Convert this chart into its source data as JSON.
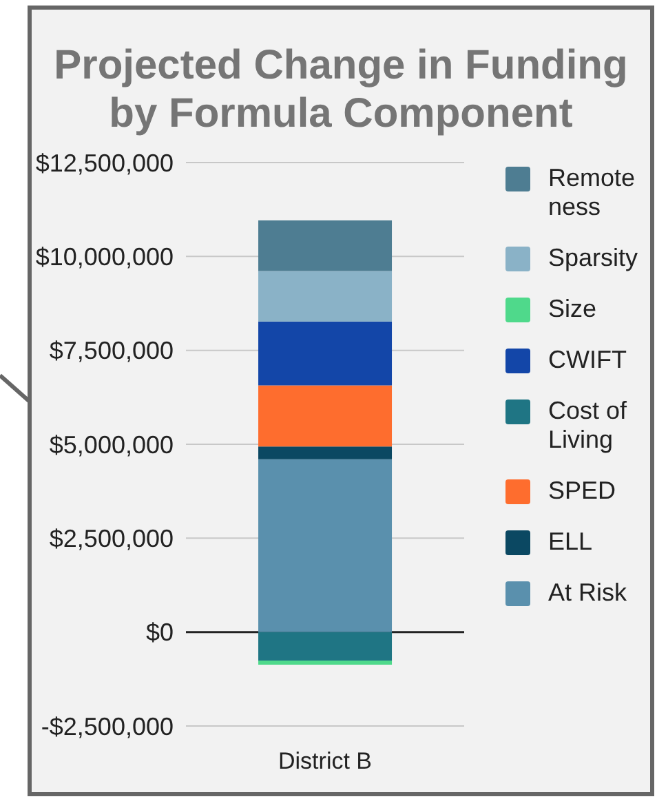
{
  "chart_data": {
    "type": "bar",
    "title": "Projected Change in Funding by Formula Component",
    "categories": [
      "District B"
    ],
    "stacked": true,
    "series": [
      {
        "name": "At Risk",
        "color": "#5a90ad",
        "values": [
          4600000
        ]
      },
      {
        "name": "ELL",
        "color": "#0b4862",
        "values": [
          340000
        ]
      },
      {
        "name": "SPED",
        "color": "#fe6d2e",
        "values": [
          1630000
        ]
      },
      {
        "name": "Cost of Living",
        "color": "#1f7584",
        "values": [
          -760000
        ]
      },
      {
        "name": "CWIFT",
        "color": "#1346a8",
        "values": [
          1700000
        ]
      },
      {
        "name": "Size",
        "color": "#4fd98b",
        "values": [
          -110000
        ]
      },
      {
        "name": "Sparsity",
        "color": "#8ab2c7",
        "values": [
          1340000
        ]
      },
      {
        "name": "Remoteness",
        "color": "#4e7d92",
        "values": [
          1350000
        ]
      }
    ],
    "ylim": [
      -2500000,
      12500000
    ],
    "yticks": [
      {
        "value": -2500000,
        "label": "-$2,500,000"
      },
      {
        "value": 0,
        "label": "$0"
      },
      {
        "value": 2500000,
        "label": "$2,500,000"
      },
      {
        "value": 5000000,
        "label": "$5,000,000"
      },
      {
        "value": 7500000,
        "label": "$7,500,000"
      },
      {
        "value": 10000000,
        "label": "$10,000,000"
      },
      {
        "value": 12500000,
        "label": "$12,500,000"
      }
    ],
    "grid": "y",
    "legend": "right"
  }
}
